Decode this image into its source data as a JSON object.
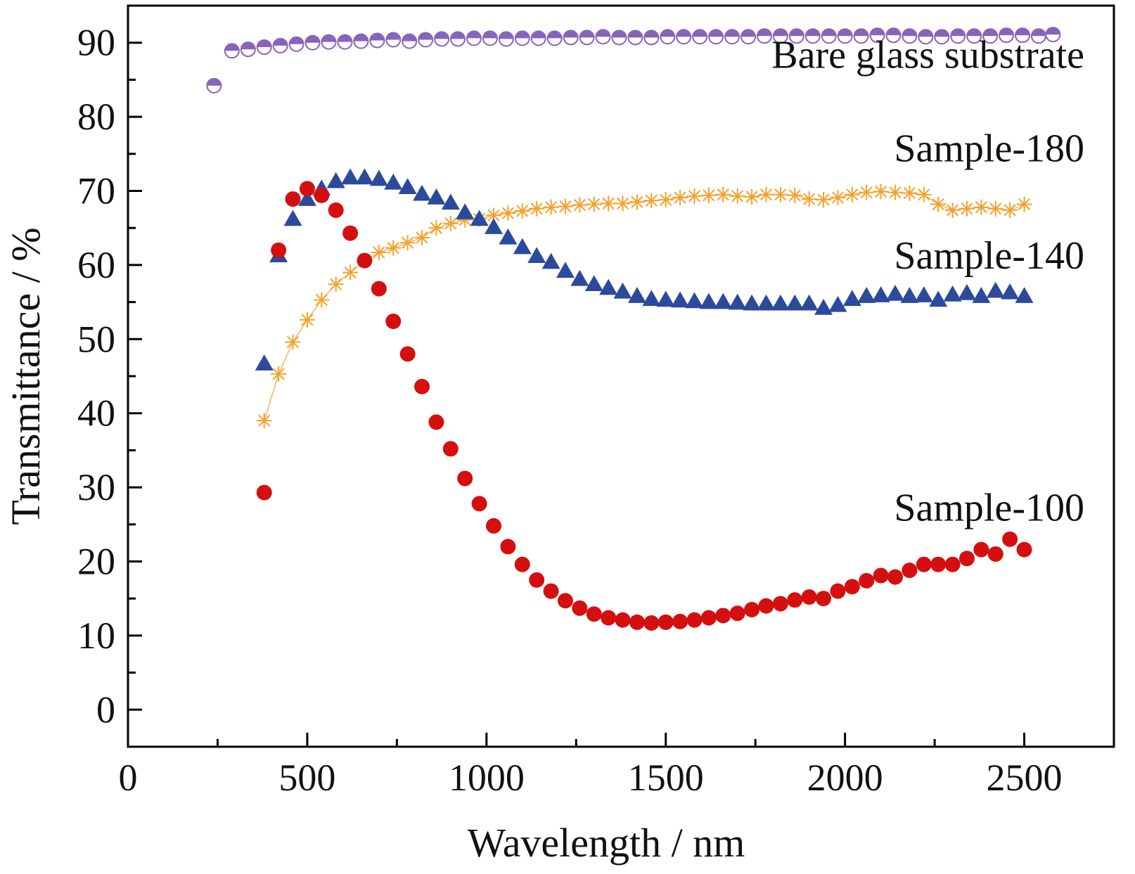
{
  "chart_data": {
    "type": "scatter",
    "xlabel": "Wavelength / nm",
    "ylabel": "Transmittance / %",
    "xlim": [
      0,
      2750
    ],
    "ylim": [
      -5,
      95
    ],
    "xticks": [
      0,
      500,
      1000,
      1500,
      2000,
      2500
    ],
    "yticks": [
      0,
      10,
      20,
      30,
      40,
      50,
      60,
      70,
      80,
      90
    ],
    "grid": false,
    "legend": "none",
    "series": [
      {
        "name": "Bare glass substrate",
        "marker": "half-filled-circle",
        "color": "#8a63b8",
        "x": [
          240,
          290,
          335,
          380,
          425,
          470,
          515,
          560,
          605,
          650,
          695,
          740,
          785,
          830,
          875,
          920,
          965,
          1010,
          1055,
          1100,
          1145,
          1190,
          1235,
          1280,
          1325,
          1370,
          1415,
          1460,
          1505,
          1550,
          1595,
          1640,
          1685,
          1730,
          1775,
          1820,
          1865,
          1910,
          1955,
          2000,
          2045,
          2090,
          2135,
          2180,
          2225,
          2270,
          2315,
          2360,
          2405,
          2450,
          2495,
          2540,
          2580
        ],
        "y": [
          84.2,
          88.9,
          89.1,
          89.4,
          89.6,
          89.8,
          90.0,
          90.1,
          90.1,
          90.2,
          90.3,
          90.4,
          90.2,
          90.4,
          90.5,
          90.5,
          90.6,
          90.6,
          90.5,
          90.6,
          90.6,
          90.6,
          90.7,
          90.7,
          90.8,
          90.7,
          90.7,
          90.7,
          90.8,
          90.8,
          90.8,
          90.8,
          90.8,
          90.8,
          90.9,
          90.9,
          90.9,
          90.9,
          90.9,
          90.9,
          90.9,
          91.0,
          91.0,
          90.9,
          90.8,
          90.8,
          90.9,
          90.9,
          90.9,
          91.0,
          91.0,
          90.9,
          91.1
        ]
      },
      {
        "name": "Sample-180",
        "marker": "asterisk",
        "color": "#f4a12d",
        "x": [
          380,
          420,
          460,
          500,
          540,
          580,
          620,
          660,
          700,
          740,
          780,
          820,
          860,
          900,
          940,
          980,
          1020,
          1060,
          1100,
          1140,
          1180,
          1220,
          1260,
          1300,
          1340,
          1380,
          1420,
          1460,
          1500,
          1540,
          1580,
          1620,
          1660,
          1700,
          1740,
          1780,
          1820,
          1860,
          1900,
          1940,
          1980,
          2020,
          2060,
          2100,
          2140,
          2180,
          2220,
          2260,
          2300,
          2340,
          2380,
          2420,
          2460,
          2500
        ],
        "y": [
          39.0,
          45.3,
          49.6,
          52.6,
          55.3,
          57.4,
          59.0,
          60.6,
          61.7,
          62.3,
          63.0,
          63.7,
          65.0,
          65.6,
          66.1,
          66.2,
          66.7,
          67.0,
          67.3,
          67.6,
          67.8,
          67.9,
          68.1,
          68.2,
          68.3,
          68.3,
          68.5,
          68.7,
          68.8,
          69.1,
          69.3,
          69.4,
          69.5,
          69.3,
          69.2,
          69.5,
          69.5,
          69.4,
          68.9,
          68.8,
          69.1,
          69.5,
          69.8,
          69.9,
          69.8,
          69.7,
          69.5,
          68.2,
          67.4,
          67.6,
          67.8,
          67.6,
          67.4,
          68.2
        ]
      },
      {
        "name": "Sample-140",
        "marker": "triangle",
        "color": "#2b4a9b",
        "x": [
          380,
          420,
          460,
          500,
          540,
          580,
          620,
          660,
          700,
          740,
          780,
          820,
          860,
          900,
          940,
          980,
          1020,
          1060,
          1100,
          1140,
          1180,
          1220,
          1260,
          1300,
          1340,
          1380,
          1420,
          1460,
          1500,
          1540,
          1580,
          1620,
          1660,
          1700,
          1740,
          1780,
          1820,
          1860,
          1900,
          1940,
          1980,
          2020,
          2060,
          2100,
          2140,
          2180,
          2220,
          2260,
          2300,
          2340,
          2380,
          2420,
          2460,
          2500
        ],
        "y": [
          46.7,
          61.3,
          66.2,
          68.9,
          70.3,
          71.3,
          71.8,
          71.8,
          71.6,
          71.1,
          70.5,
          69.6,
          69.1,
          68.4,
          67.1,
          66.2,
          65.1,
          63.7,
          62.4,
          61.2,
          60.4,
          59.2,
          58.1,
          57.4,
          56.9,
          56.4,
          55.8,
          55.4,
          55.3,
          55.2,
          55.1,
          55.0,
          55.0,
          54.9,
          54.8,
          54.8,
          54.8,
          54.8,
          54.8,
          54.2,
          54.6,
          55.4,
          55.8,
          55.9,
          56.1,
          55.8,
          55.9,
          55.3,
          56.0,
          56.2,
          55.8,
          56.5,
          56.3,
          55.8
        ]
      },
      {
        "name": "Sample-100",
        "marker": "filled-circle",
        "color": "#d50f0f",
        "x": [
          380,
          420,
          460,
          500,
          540,
          580,
          620,
          660,
          700,
          740,
          780,
          820,
          860,
          900,
          940,
          980,
          1020,
          1060,
          1100,
          1140,
          1180,
          1220,
          1260,
          1300,
          1340,
          1380,
          1420,
          1460,
          1500,
          1540,
          1580,
          1620,
          1660,
          1700,
          1740,
          1780,
          1820,
          1860,
          1900,
          1940,
          1980,
          2020,
          2060,
          2100,
          2140,
          2180,
          2220,
          2260,
          2300,
          2340,
          2380,
          2420,
          2460,
          2500
        ],
        "y": [
          29.3,
          62.0,
          68.9,
          70.3,
          69.4,
          67.4,
          64.3,
          60.6,
          56.8,
          52.4,
          48.0,
          43.6,
          38.8,
          35.2,
          31.2,
          27.8,
          24.8,
          22.0,
          19.6,
          17.5,
          16.0,
          14.7,
          13.7,
          12.9,
          12.4,
          12.1,
          11.8,
          11.7,
          11.8,
          11.9,
          12.1,
          12.4,
          12.7,
          13.0,
          13.5,
          14.0,
          14.3,
          14.8,
          15.2,
          15.0,
          16.0,
          16.6,
          17.4,
          18.1,
          17.9,
          18.8,
          19.6,
          19.6,
          19.6,
          20.4,
          21.6,
          21.0,
          23.0,
          21.6
        ]
      }
    ]
  }
}
